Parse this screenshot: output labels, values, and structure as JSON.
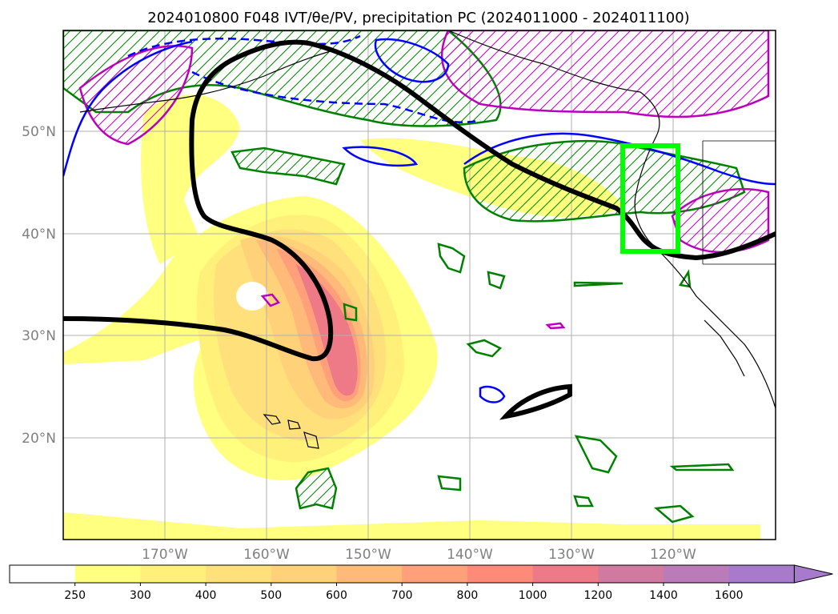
{
  "title": "2024010800 F048 IVT/θe/PV, precipitation PC (2024011000 - 2024011100)",
  "map": {
    "lon_labels": [
      "170°W",
      "160°W",
      "150°W",
      "140°W",
      "130°W",
      "120°W"
    ],
    "lat_labels": [
      "50°N",
      "40°N",
      "30°N",
      "20°N"
    ],
    "lon_range": [
      -180,
      -110
    ],
    "lat_range": [
      10,
      60
    ],
    "gridlines": true
  },
  "colorbar": {
    "levels": [
      "250",
      "300",
      "400",
      "500",
      "600",
      "700",
      "800",
      "1000",
      "1200",
      "1400",
      "1600"
    ],
    "colors": [
      "#ffffff",
      "#ffff80",
      "#fff07a",
      "#ffe07a",
      "#ffd27a",
      "#ffba7a",
      "#ffa07a",
      "#ff8a7a",
      "#ee7a88",
      "#d07aa0",
      "#bb7ab8",
      "#a77acc"
    ],
    "extend": "max"
  },
  "contour_colors": {
    "ivt_core": "#ff8a7a",
    "theta_e": "#000000",
    "pv_positive": "#008000",
    "pv_negative": "#0000ff",
    "precip": "#bb00bb",
    "focus_box": "#00ff00"
  }
}
